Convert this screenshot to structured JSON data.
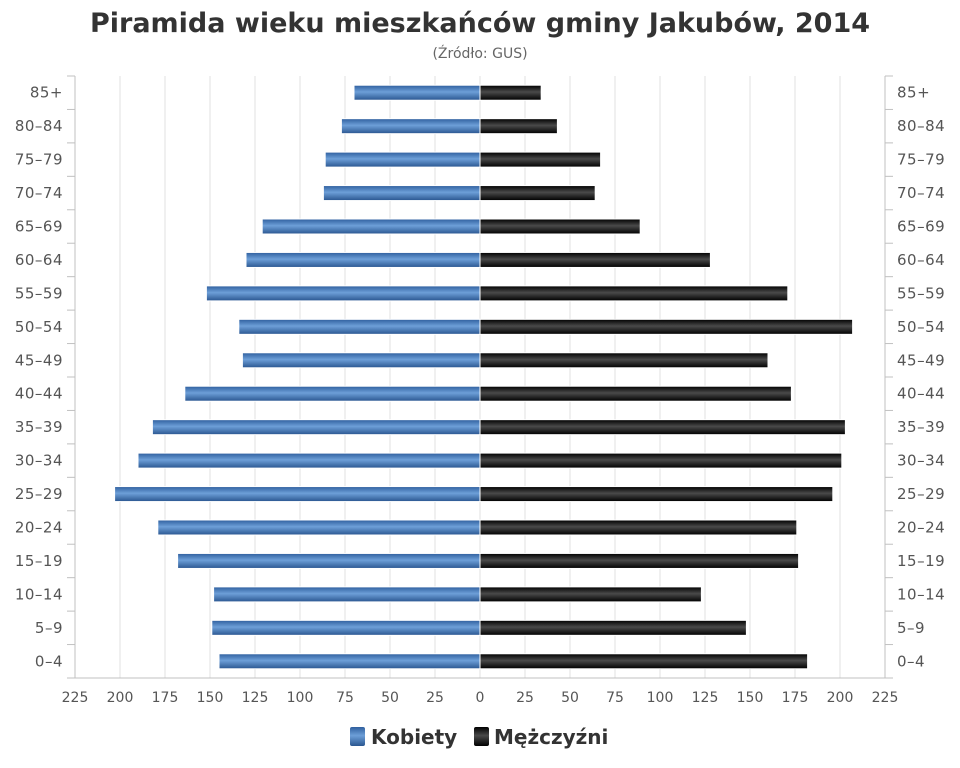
{
  "chart_data": {
    "type": "bar",
    "orientation": "horizontal",
    "title": "Piramida wieku mieszkańców gminy Jakubów, 2014",
    "subtitle": "(Źródło: GUS)",
    "categories": [
      "85+",
      "80-84",
      "75-79",
      "70-74",
      "65-69",
      "60-64",
      "55-59",
      "50-54",
      "45-49",
      "40-44",
      "35-39",
      "30-34",
      "25-29",
      "20-24",
      "15-19",
      "10-14",
      "5-9",
      "0-4"
    ],
    "series": [
      {
        "name": "Kobiety",
        "color": "#4a7fc1",
        "values": [
          70,
          77,
          86,
          87,
          121,
          130,
          152,
          134,
          132,
          164,
          182,
          190,
          203,
          179,
          168,
          148,
          149,
          145
        ]
      },
      {
        "name": "Mężczyźni",
        "color": "#1a1a1a",
        "values": [
          34,
          43,
          67,
          64,
          89,
          128,
          171,
          207,
          160,
          173,
          203,
          201,
          196,
          176,
          177,
          123,
          148,
          182
        ]
      }
    ],
    "xlim": [
      -225,
      225
    ],
    "xticks": [
      "225",
      "200",
      "175",
      "150",
      "125",
      "100",
      "75",
      "50",
      "25",
      "0",
      "25",
      "50",
      "75",
      "100",
      "125",
      "150",
      "175",
      "200",
      "225"
    ],
    "grid": true,
    "legend_position": "bottom-center"
  }
}
